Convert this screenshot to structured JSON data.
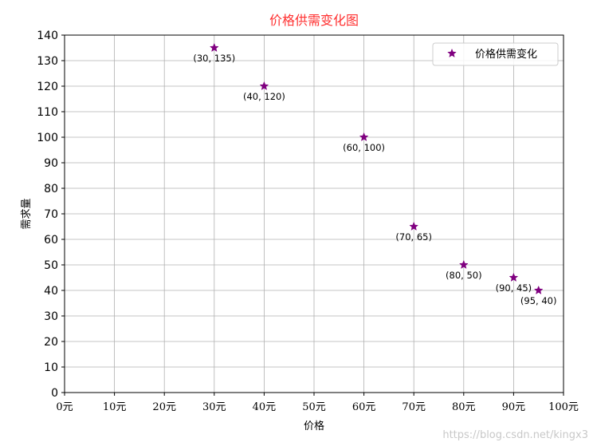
{
  "chart_data": {
    "type": "scatter",
    "title": "价格供需变化图",
    "title_color": "#ff3030",
    "xlabel": "价格",
    "ylabel": "需求量",
    "xlim": [
      0,
      100
    ],
    "ylim": [
      0,
      140
    ],
    "x_ticks": [
      0,
      10,
      20,
      30,
      40,
      50,
      60,
      70,
      80,
      90,
      100
    ],
    "x_tick_labels": [
      "0元",
      "10元",
      "20元",
      "30元",
      "40元",
      "50元",
      "60元",
      "70元",
      "80元",
      "90元",
      "100元"
    ],
    "y_ticks": [
      0,
      10,
      20,
      30,
      40,
      50,
      60,
      70,
      80,
      90,
      100,
      110,
      120,
      130,
      140
    ],
    "y_tick_labels": [
      "0",
      "10",
      "20",
      "30",
      "40",
      "50",
      "60",
      "70",
      "80",
      "90",
      "100",
      "110",
      "120",
      "130",
      "140"
    ],
    "grid": true,
    "legend_position": "top-right",
    "series": [
      {
        "name": "价格供需变化",
        "marker": "star",
        "color": "#800080",
        "x": [
          30,
          40,
          60,
          70,
          80,
          90,
          95
        ],
        "y": [
          135,
          120,
          100,
          65,
          50,
          45,
          40
        ],
        "labels": [
          "(30, 135)",
          "(40, 120)",
          "(60, 100)",
          "(70, 65)",
          "(80, 50)",
          "(90, 45)",
          "(95, 40)"
        ]
      }
    ]
  },
  "watermark": "https://blog.csdn.net/kingx3"
}
